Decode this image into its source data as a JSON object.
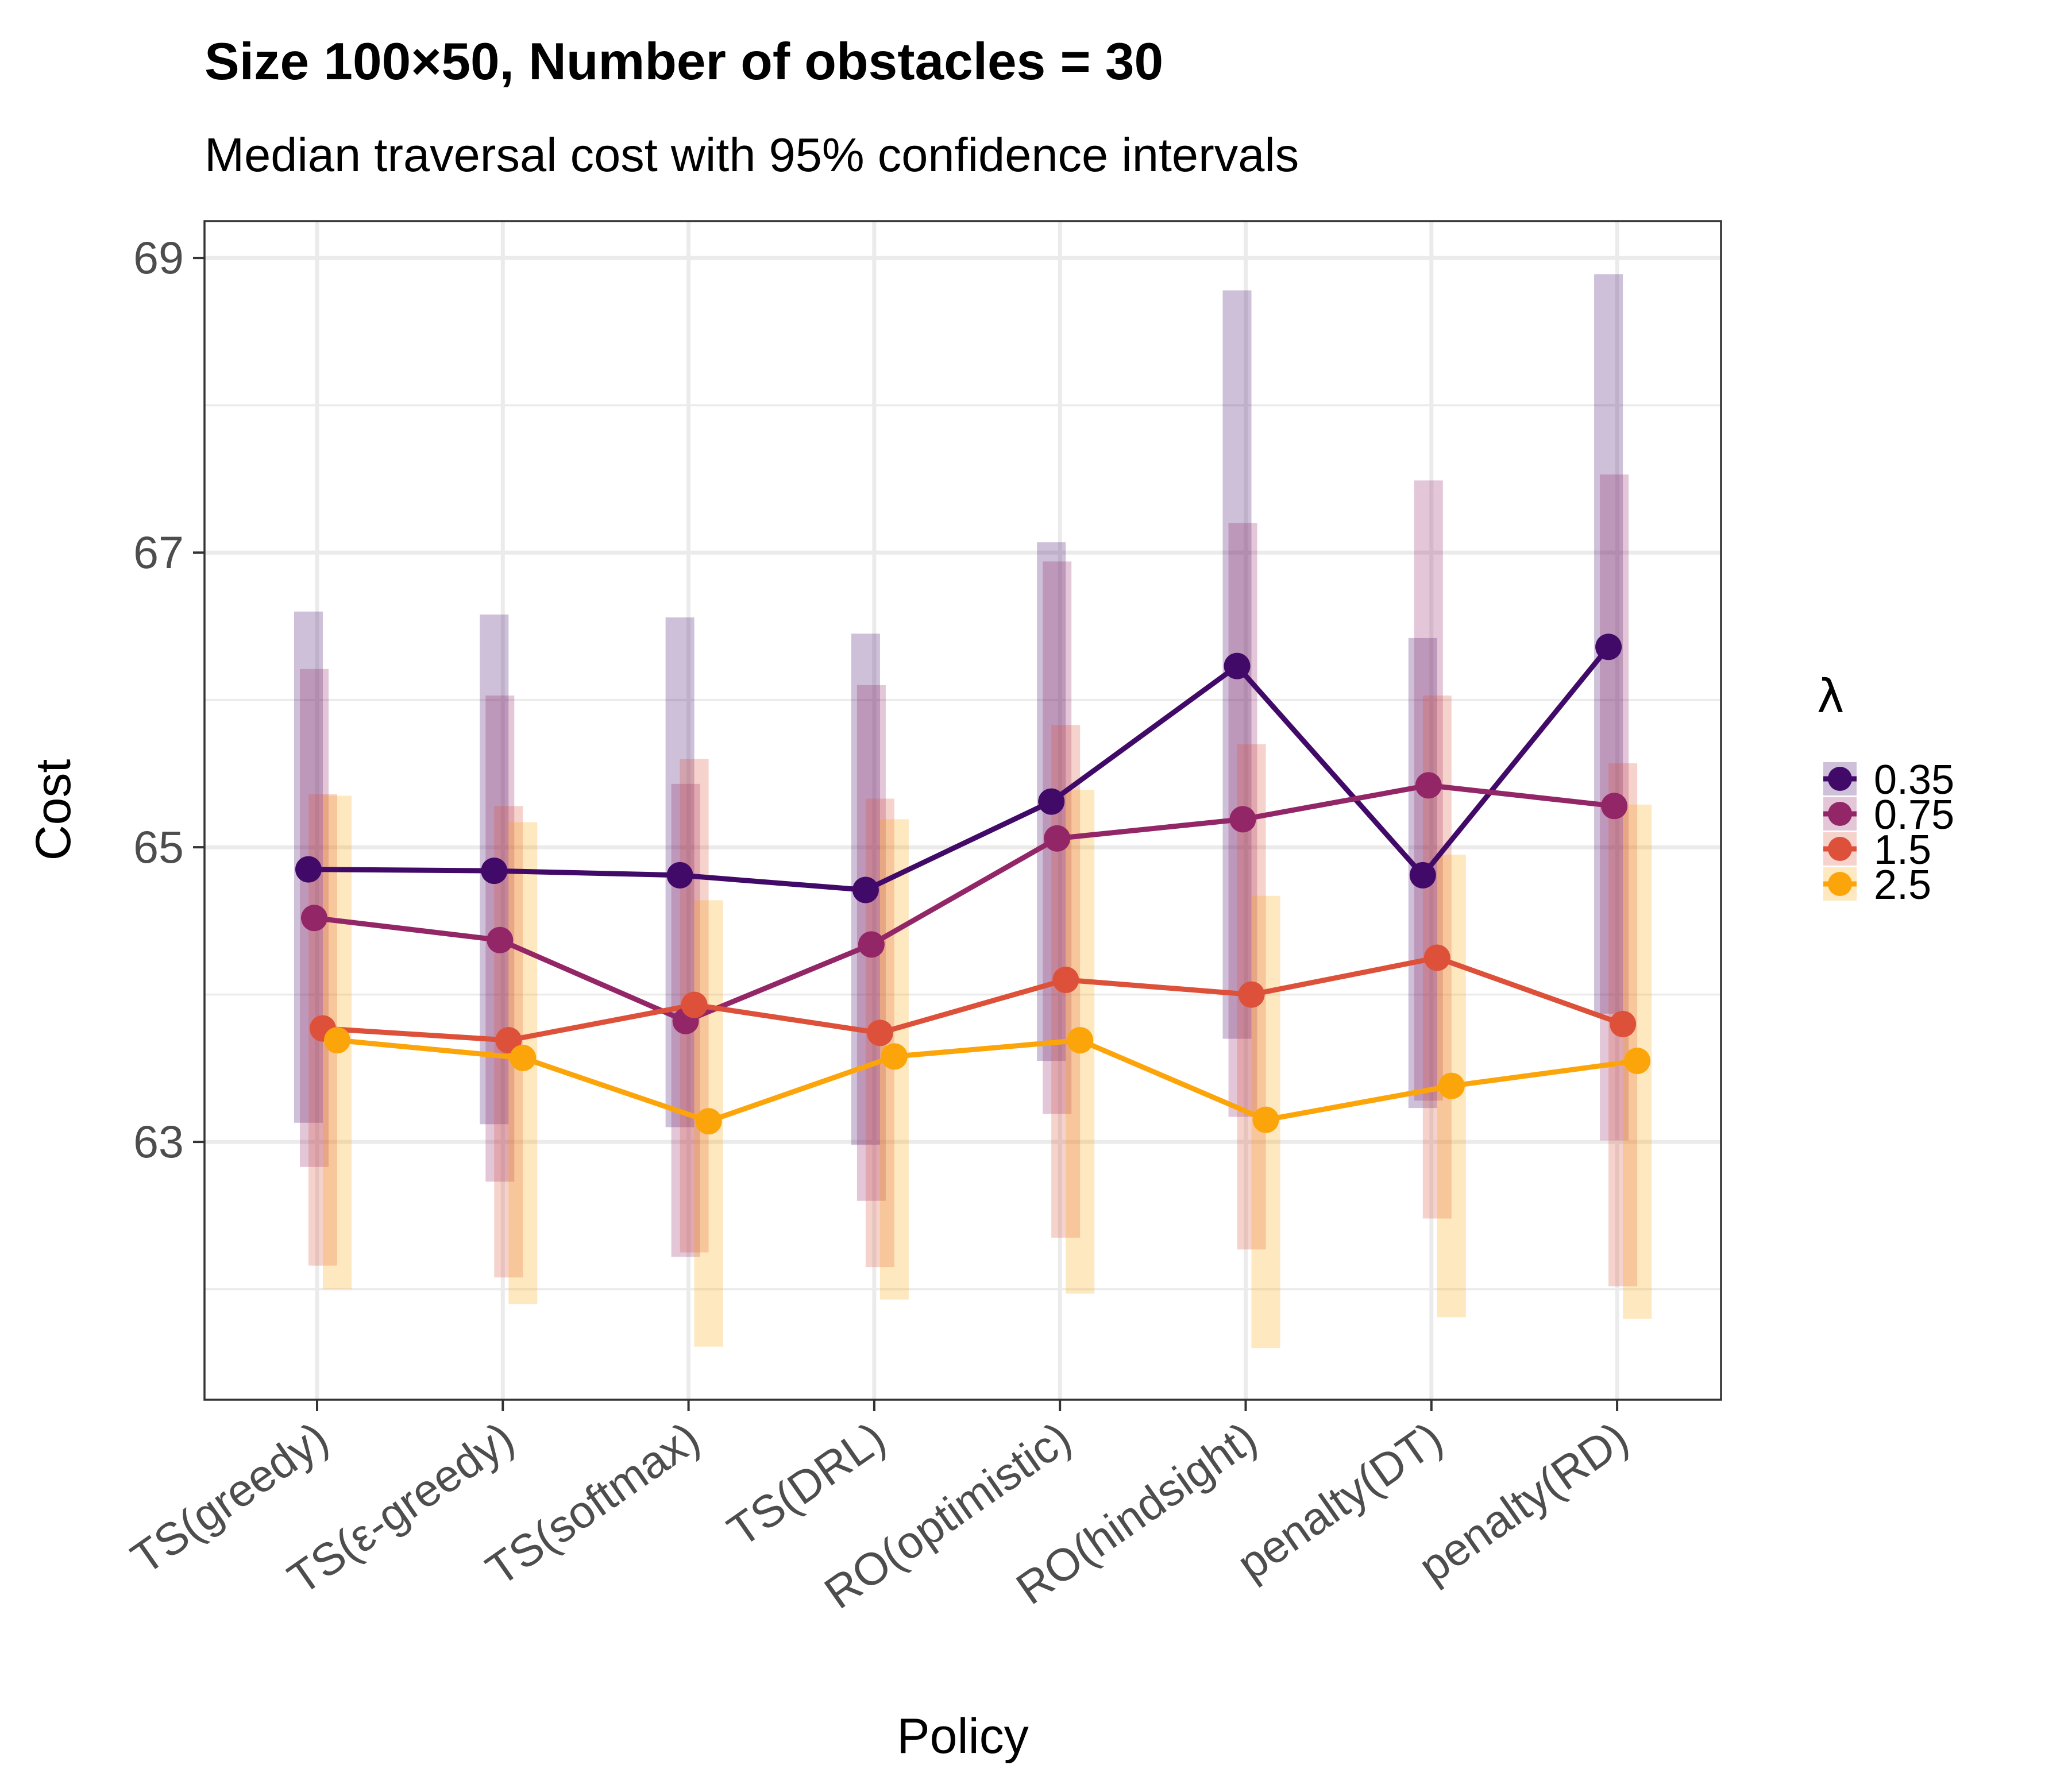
{
  "chart_data": {
    "type": "line",
    "title": "Size 100×50, Number of obstacles = 30",
    "subtitle": "Median traversal cost with 95% confidence intervals",
    "xlabel": "Policy",
    "ylabel": "Cost",
    "categories": [
      "TS(greedy)",
      "TS(ε-greedy)",
      "TS(softmax)",
      "TS(DRL)",
      "RO(optimistic)",
      "RO(hindsight)",
      "penalty(DT)",
      "penalty(RD)"
    ],
    "ylim": [
      61.25,
      69.25
    ],
    "yticks": [
      63,
      65,
      67,
      69
    ],
    "grid": true,
    "legend": {
      "title": "λ",
      "position": "right"
    },
    "series": [
      {
        "name": "0.35",
        "color": "#420a68",
        "values": [
          64.85,
          64.84,
          64.81,
          64.71,
          65.31,
          66.23,
          64.81,
          66.36
        ],
        "lower": [
          63.13,
          63.12,
          63.1,
          62.98,
          63.55,
          63.7,
          63.23,
          63.87
        ],
        "upper": [
          66.6,
          66.58,
          66.56,
          66.45,
          67.07,
          68.78,
          66.42,
          68.89
        ]
      },
      {
        "name": "0.75",
        "color": "#932667",
        "values": [
          64.52,
          64.37,
          63.82,
          64.34,
          65.06,
          65.19,
          65.42,
          65.28
        ],
        "lower": [
          62.83,
          62.73,
          62.22,
          62.6,
          63.19,
          63.17,
          63.28,
          63.01
        ],
        "upper": [
          66.21,
          66.03,
          65.43,
          66.1,
          66.94,
          67.2,
          67.49,
          67.53
        ]
      },
      {
        "name": "1.5",
        "color": "#dd513a",
        "values": [
          63.77,
          63.69,
          63.93,
          63.74,
          64.1,
          64.0,
          64.25,
          63.8
        ],
        "lower": [
          62.16,
          62.08,
          62.25,
          62.15,
          62.35,
          62.27,
          62.48,
          62.02
        ],
        "upper": [
          65.36,
          65.28,
          65.6,
          65.33,
          65.83,
          65.7,
          66.03,
          65.57
        ]
      },
      {
        "name": "2.5",
        "color": "#fca50a",
        "values": [
          63.69,
          63.57,
          63.14,
          63.58,
          63.69,
          63.15,
          63.38,
          63.55
        ],
        "lower": [
          62.0,
          61.9,
          61.61,
          61.93,
          61.97,
          61.6,
          61.81,
          61.8
        ],
        "upper": [
          65.35,
          65.17,
          64.64,
          65.19,
          65.39,
          64.67,
          64.95,
          65.29
        ]
      }
    ]
  }
}
